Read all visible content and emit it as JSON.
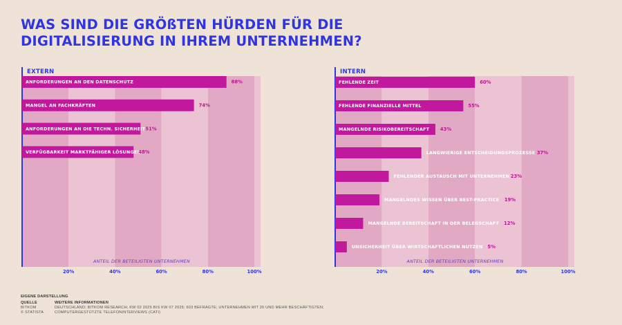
{
  "title_lines": [
    "WAS SIND DIE GRÖßTEN HÜRDEN FÜR DIE",
    "DIGITALISIERUNG IN IHREM UNTERNEHMEN?"
  ],
  "colors": {
    "title": "#2f35e0",
    "bar": "#c2189d",
    "band_dark": "#e1a9c4",
    "band_light": "#ebc3d2",
    "axis": "#2f35e0",
    "label_on_bar": "#ffffff",
    "label_off_bar": "#ffffff",
    "value": "#b81893"
  },
  "chart_data": [
    {
      "type": "bar",
      "orientation": "horizontal",
      "title": "EXTERN",
      "categories": [
        "ANFORDERUNGEN AN DEN DATENSCHUTZ",
        "MANGEL AN FACHKRÄFTEN",
        "ANFORDERUNGEN AN DIE TECHN. SICHERHEIT",
        "VERFÜGBARKEIT MARKTFÄHIGER LÖSUNGEN"
      ],
      "values": [
        88,
        74,
        51,
        48
      ],
      "value_labels": [
        "88%",
        "74%",
        "51%",
        "48%"
      ],
      "label_inside": [
        true,
        true,
        true,
        true
      ],
      "xlabel": "ANTEIL DER BETEILIGTEN UNTERNEHMEN",
      "xlim": [
        0,
        100
      ],
      "xticks": [
        20,
        40,
        60,
        80,
        100
      ],
      "xtick_labels": [
        "20%",
        "40%",
        "60%",
        "80%",
        "100%"
      ]
    },
    {
      "type": "bar",
      "orientation": "horizontal",
      "title": "INTERN",
      "categories": [
        "FEHLENDE ZEIT",
        "FEHLENDE FINANZIELLE MITTEL",
        "MANGELNDE RISIKOBEREITSCHAFT",
        "LANGWIERIGE ENTSCHEIDUNGSPROZESSE",
        "FEHLENDER AUSTAUSCH MIT UNTERNEHMEN",
        "MANGELNDES WISSEN ÜBER BEST-PRACTICE",
        "MANGELNDE BEREITSCHAFT IN DER BELEGSCHAFT",
        "UNSICHERHEIT ÜBER WIRTSCHAFTLICHEN NUTZEN"
      ],
      "values": [
        60,
        55,
        43,
        37,
        23,
        19,
        12,
        5
      ],
      "value_labels": [
        "60%",
        "55%",
        "43%",
        "37%",
        "23%",
        "19%",
        "12%",
        "5%"
      ],
      "label_inside": [
        true,
        true,
        true,
        false,
        false,
        false,
        false,
        false
      ],
      "xlabel": "ANTEIL DER BETEILIGTEN UNTERNEHMEN",
      "xlim": [
        0,
        100
      ],
      "xticks": [
        20,
        40,
        60,
        80,
        100
      ],
      "xtick_labels": [
        "20%",
        "40%",
        "60%",
        "80%",
        "100%"
      ]
    }
  ],
  "footer": {
    "own_presentation": "EIGENE DARSTELLUNG",
    "source_label": "QUELLE",
    "source_lines": [
      "BITKOM",
      "© STATISTA"
    ],
    "info_label": "WEITERE INFORMATIONEN",
    "info_lines": [
      "DEUTSCHLAND; BITKOM RESEARCH; KW 02 2025 BIS KW 07 2025; 603 BEFRAGTE; UNTERNEHMEN MIT 20 UND MEHR BESCHÄFTIGTEN;",
      "COMPUTERGESTÜTZTE TELEFONINTERVIEWS (CATI)"
    ]
  }
}
